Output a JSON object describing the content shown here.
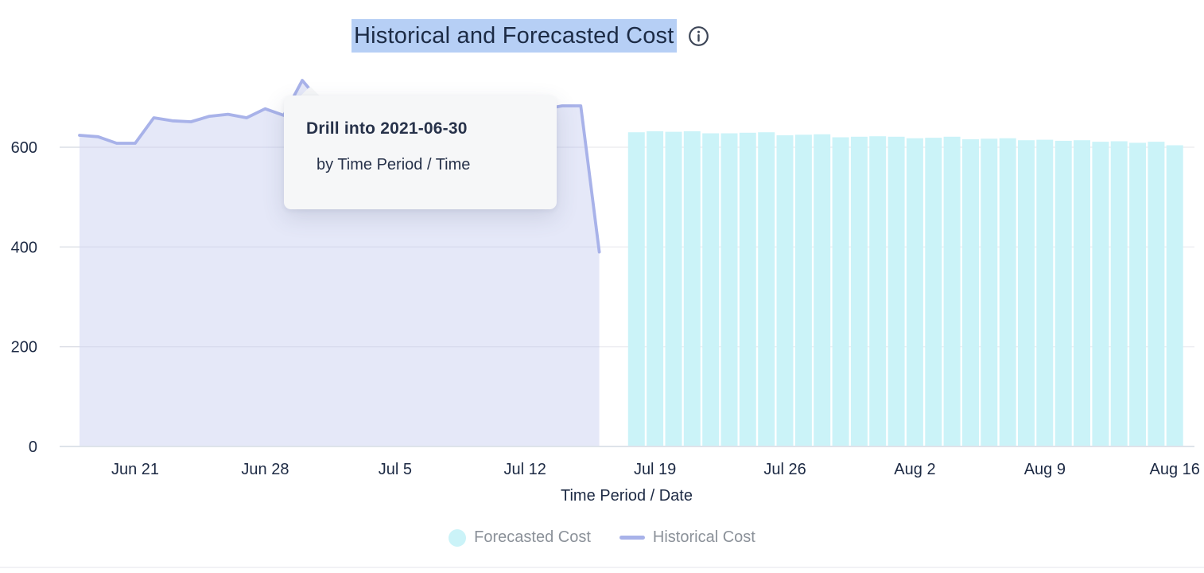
{
  "header": {
    "title": "Historical and Forecasted Cost",
    "info_icon": "info-icon"
  },
  "tooltip": {
    "title": "Drill into 2021-06-30",
    "subtitle": "by Time Period / Time"
  },
  "legend": [
    {
      "swatch": "circle",
      "label": "Forecasted Cost"
    },
    {
      "swatch": "line",
      "label": "Historical Cost"
    }
  ],
  "colors": {
    "title_text": "#1c2b45",
    "title_highlight": "#b6cff5",
    "axis_text": "#1d2a44",
    "grid": "#ededf1",
    "tick": "#dcdfe6",
    "baseline": "#dee3ea",
    "bar_fill": "#cbf3f8",
    "line_stroke": "#a8b2e9",
    "area_fill": "rgba(168,178,233,0.30)",
    "legend_text": "#8b9199",
    "tooltip_bg": "#f6f7f8",
    "tooltip_text": "#27324a",
    "info_icon": "#3d4657",
    "bottom_rule": "#f2f2f5"
  },
  "chart_data": {
    "type": "line",
    "title": "Historical and Forecasted Cost",
    "xlabel": "Time Period / Date",
    "ylabel": "",
    "ylim": [
      0,
      750
    ],
    "y_ticks": [
      0,
      200,
      400,
      600
    ],
    "grid": true,
    "legend_position": "bottom",
    "x_ticks": [
      {
        "label": "Jun 21",
        "date": "2021-06-21"
      },
      {
        "label": "Jun 28",
        "date": "2021-06-28"
      },
      {
        "label": "Jul 5",
        "date": "2021-07-05"
      },
      {
        "label": "Jul 12",
        "date": "2021-07-12"
      },
      {
        "label": "Jul 19",
        "date": "2021-07-19"
      },
      {
        "label": "Jul 26",
        "date": "2021-07-26"
      },
      {
        "label": "Aug 2",
        "date": "2021-08-02"
      },
      {
        "label": "Aug 9",
        "date": "2021-08-09"
      },
      {
        "label": "Aug 16",
        "date": "2021-08-16"
      }
    ],
    "series": [
      {
        "name": "Historical Cost",
        "type": "area",
        "x": [
          "2021-06-18",
          "2021-06-19",
          "2021-06-20",
          "2021-06-21",
          "2021-06-22",
          "2021-06-23",
          "2021-06-24",
          "2021-06-25",
          "2021-06-26",
          "2021-06-27",
          "2021-06-28",
          "2021-06-29",
          "2021-06-30",
          "2021-07-01",
          "2021-07-02",
          "2021-07-03",
          "2021-07-04",
          "2021-07-05",
          "2021-07-06",
          "2021-07-07",
          "2021-07-08",
          "2021-07-09",
          "2021-07-10",
          "2021-07-11",
          "2021-07-12",
          "2021-07-13",
          "2021-07-14",
          "2021-07-15",
          "2021-07-16"
        ],
        "values": [
          624,
          621,
          608,
          608,
          659,
          653,
          651,
          662,
          666,
          659,
          677,
          664,
          734,
          690,
          678,
          672,
          668,
          670,
          665,
          668,
          671,
          666,
          670,
          673,
          668,
          676,
          683,
          683,
          390
        ]
      },
      {
        "name": "Forecasted Cost",
        "type": "bar",
        "x": [
          "2021-07-18",
          "2021-07-19",
          "2021-07-20",
          "2021-07-21",
          "2021-07-22",
          "2021-07-23",
          "2021-07-24",
          "2021-07-25",
          "2021-07-26",
          "2021-07-27",
          "2021-07-28",
          "2021-07-29",
          "2021-07-30",
          "2021-07-31",
          "2021-08-01",
          "2021-08-02",
          "2021-08-03",
          "2021-08-04",
          "2021-08-05",
          "2021-08-06",
          "2021-08-07",
          "2021-08-08",
          "2021-08-09",
          "2021-08-10",
          "2021-08-11",
          "2021-08-12",
          "2021-08-13",
          "2021-08-14",
          "2021-08-15",
          "2021-08-16"
        ],
        "values": [
          630,
          632,
          631,
          632,
          628,
          628,
          629,
          630,
          624,
          625,
          626,
          620,
          621,
          622,
          621,
          618,
          619,
          621,
          616,
          617,
          618,
          614,
          615,
          613,
          614,
          611,
          612,
          609,
          611,
          604
        ]
      }
    ],
    "hovered_point": {
      "series": "Historical Cost",
      "date": "2021-06-30",
      "value": 734
    }
  }
}
